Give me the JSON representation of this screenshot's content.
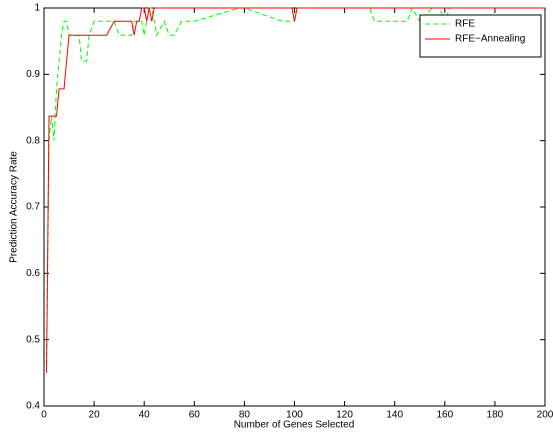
{
  "chart_data": {
    "type": "line",
    "x_label": "Number of Genes Selected",
    "y_label": "Prediction Accuracy Rate",
    "x": [
      1,
      2,
      3,
      4,
      5,
      6,
      7,
      8,
      9,
      10,
      12,
      14,
      15,
      16,
      17,
      18,
      20,
      25,
      28,
      30,
      33,
      35,
      36,
      37,
      38,
      39,
      40,
      41,
      42,
      43,
      44,
      45,
      48,
      50,
      52,
      55,
      60,
      78,
      80,
      95,
      99,
      100,
      101,
      110,
      130,
      132,
      145,
      147,
      150,
      155,
      158,
      160,
      162,
      165,
      180,
      200
    ],
    "series": [
      {
        "name": "RFE",
        "color": "#00ff00",
        "line_style": "dashed",
        "values": [
          0.45,
          0.8,
          0.837,
          0.8,
          0.878,
          0.92,
          0.959,
          0.98,
          0.98,
          0.959,
          0.959,
          0.959,
          0.92,
          0.92,
          0.92,
          0.959,
          0.98,
          0.98,
          0.98,
          0.959,
          0.959,
          0.959,
          0.98,
          0.98,
          0.98,
          0.98,
          0.959,
          0.98,
          1,
          1,
          0.98,
          0.959,
          0.98,
          0.959,
          0.959,
          0.98,
          0.98,
          1,
          1,
          0.98,
          0.98,
          0.98,
          1,
          1,
          1,
          0.98,
          0.98,
          1,
          0.98,
          1,
          1,
          0.98,
          1,
          1,
          1,
          1
        ]
      },
      {
        "name": "RFE−Annealing",
        "color": "#ff0000",
        "line_style": "solid",
        "values": [
          0.45,
          0.837,
          0.837,
          0.837,
          0.837,
          0.878,
          0.878,
          0.878,
          0.92,
          0.959,
          0.959,
          0.959,
          0.959,
          0.959,
          0.959,
          0.959,
          0.959,
          0.959,
          0.98,
          0.98,
          0.98,
          0.98,
          0.959,
          0.98,
          0.98,
          1,
          1,
          0.98,
          1,
          0.98,
          1,
          1,
          1,
          1,
          1,
          1,
          1,
          1,
          1,
          1,
          1,
          0.98,
          1,
          1,
          1,
          1,
          1,
          1,
          1,
          1,
          1,
          1,
          1,
          1,
          1,
          1
        ]
      }
    ],
    "xlim": [
      0,
      200
    ],
    "xticks": [
      0,
      20,
      40,
      60,
      80,
      100,
      120,
      140,
      160,
      180,
      200
    ],
    "ylim": [
      0.4,
      1
    ],
    "yticks": [
      0.4,
      0.5,
      0.6,
      0.7,
      0.8,
      0.9,
      1
    ],
    "legend": "upper right",
    "grid": false
  }
}
